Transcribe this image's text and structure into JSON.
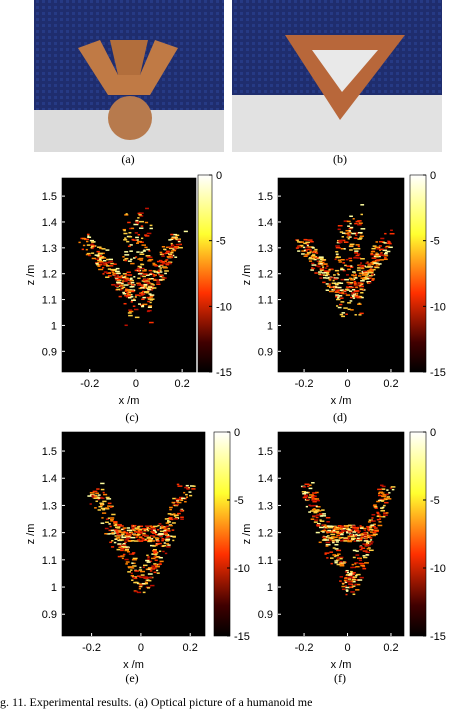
{
  "labels": [
    "(a)",
    "(b)",
    "(c)",
    "(d)",
    "(e)",
    "(f)"
  ],
  "axes": {
    "xlabel": "x /m",
    "ylabel": "z /m",
    "xticks": [
      -0.2,
      0,
      0.2
    ],
    "xlim": [
      -0.32,
      0.26
    ],
    "yticks": [
      0.9,
      1,
      1.1,
      1.2,
      1.3,
      1.4,
      1.5
    ],
    "ylim": [
      0.82,
      1.57
    ],
    "colorbar": {
      "ticks": [
        0,
        -5,
        -10,
        -15
      ],
      "lim": [
        -15,
        0
      ]
    }
  },
  "caption": "g. 11.   Experimental results.  (a) Optical picture of a humanoid me"
}
